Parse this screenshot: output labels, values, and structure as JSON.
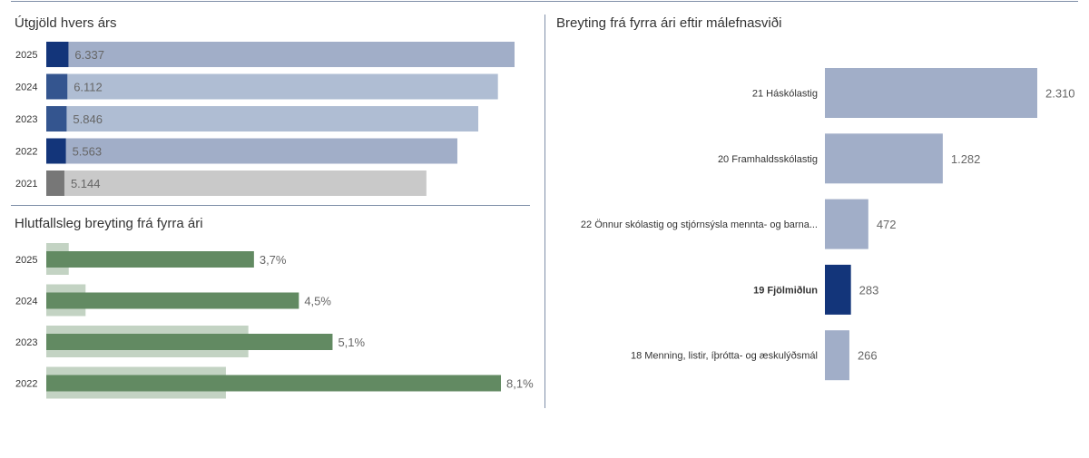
{
  "colors": {
    "dark_blue": "#13357a",
    "mid_blue": "#34558f",
    "bar_blue": "#a1aec8",
    "bar_light_blue": "#afbdd3",
    "dark_grey": "#777777",
    "light_grey": "#c9c9c9",
    "green": "#628a62",
    "light_green": "#c3d3c3",
    "text": "#333333",
    "value_text": "#666666"
  },
  "chart_data": [
    {
      "type": "bar",
      "title": "Útgjöld hvers árs",
      "orientation": "horizontal",
      "categories": [
        "2025",
        "2024",
        "2023",
        "2022",
        "2021"
      ],
      "values": [
        6337,
        6112,
        5846,
        5563,
        5144
      ],
      "value_labels": [
        "6.337",
        "6.112",
        "5.846",
        "5.563",
        "5.144"
      ],
      "highlight_values": [
        300,
        285,
        275,
        265,
        245
      ],
      "xlim": [
        0,
        6337
      ]
    },
    {
      "type": "bar",
      "title": "Hlutfallsleg breyting frá fyrra ári",
      "orientation": "horizontal",
      "categories": [
        "2025",
        "2024",
        "2023",
        "2022"
      ],
      "series": [
        {
          "name": "current",
          "values": [
            3.7,
            4.5,
            5.1,
            8.1
          ],
          "value_labels": [
            "3,7%",
            "4,5%",
            "5,1%",
            "8,1%"
          ]
        },
        {
          "name": "comparison",
          "values": [
            0.4,
            0.7,
            3.6,
            3.2
          ]
        }
      ],
      "xlim": [
        0,
        8.1
      ]
    },
    {
      "type": "bar",
      "title": "Breyting frá fyrra ári eftir málefnasviði",
      "orientation": "horizontal",
      "categories": [
        "21 Háskólastig",
        "20 Framhaldsskólastig",
        "22 Önnur skólastig og stjórnsýsla mennta- og barna...",
        "19 Fjölmiðlun",
        "18 Menning, listir, íþrótta- og æskulýðsmál"
      ],
      "values": [
        2310,
        1282,
        472,
        283,
        266
      ],
      "value_labels": [
        "2.310",
        "1.282",
        "472",
        "283",
        "266"
      ],
      "highlighted": "19 Fjölmiðlun",
      "xlim": [
        0,
        2310
      ]
    }
  ]
}
